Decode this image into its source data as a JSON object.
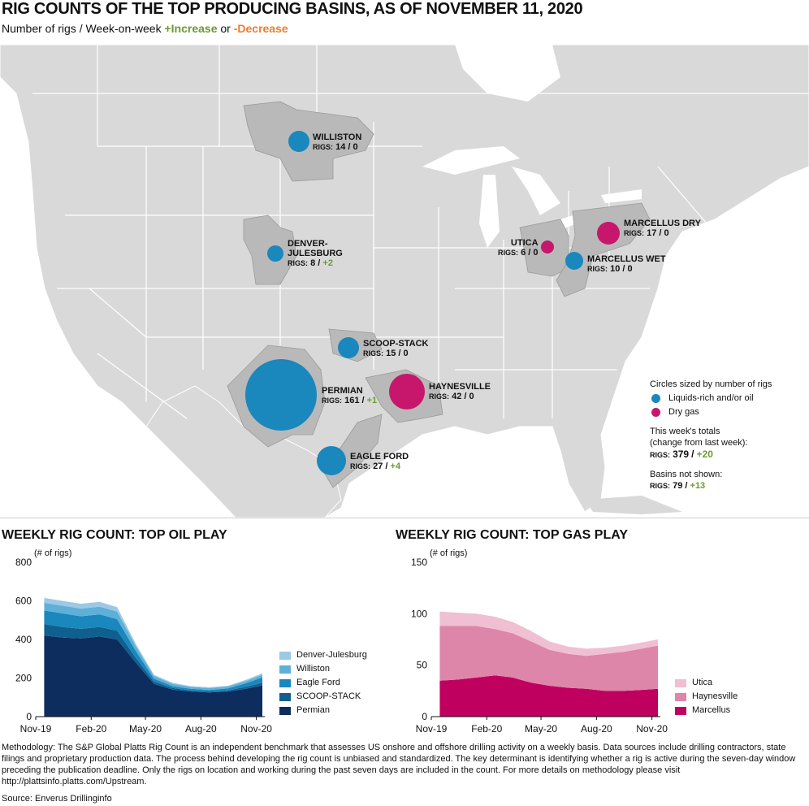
{
  "title": "RIG COUNTS OF THE TOP PRODUCING BASINS, AS OF NOVEMBER 11, 2020",
  "subtitle": {
    "prefix": "Number of rigs / Week-on-week",
    "increase": "+Increase",
    "or": "or",
    "decrease": "-Decrease"
  },
  "colors": {
    "oil": "#1a87bd",
    "gas": "#c6176d",
    "basin_fill": "#b9b9b9",
    "land": "#d9d9d9",
    "increase": "#6a9a2f",
    "decrease": "#f07b2a"
  },
  "basins": [
    {
      "name": "WILLISTON",
      "rigs_label": "RIGS:",
      "rigs": "14",
      "sep": "/",
      "change": "0",
      "type": "oil"
    },
    {
      "name": "DENVER-",
      "name2": "JULESBURG",
      "rigs_label": "RIGS:",
      "rigs": "8",
      "sep": "/",
      "change": "+2",
      "type": "oil"
    },
    {
      "name": "SCOOP-STACK",
      "rigs_label": "RIGS:",
      "rigs": "15",
      "sep": "/",
      "change": "0",
      "type": "oil"
    },
    {
      "name": "PERMIAN",
      "rigs_label": "RIGS:",
      "rigs": "161",
      "sep": "/",
      "change": "+1",
      "type": "oil"
    },
    {
      "name": "HAYNESVILLE",
      "rigs_label": "RIGS:",
      "rigs": "42",
      "sep": "/",
      "change": "0",
      "type": "gas"
    },
    {
      "name": "EAGLE FORD",
      "rigs_label": "RIGS:",
      "rigs": "27",
      "sep": "/",
      "change": "+4",
      "type": "oil"
    },
    {
      "name": "UTICA",
      "rigs_label": "RIGS:",
      "rigs": "6",
      "sep": "/",
      "change": "0",
      "type": "gas"
    },
    {
      "name": "MARCELLUS DRY",
      "rigs_label": "RIGS:",
      "rigs": "17",
      "sep": "/",
      "change": "0",
      "type": "gas"
    },
    {
      "name": "MARCELLUS WET",
      "rigs_label": "RIGS:",
      "rigs": "10",
      "sep": "/",
      "change": "0",
      "type": "oil"
    }
  ],
  "legend": {
    "heading": "Circles sized by number of rigs",
    "oil": "Liquids-rich and/or oil",
    "gas": "Dry gas",
    "totals_heading_1": "This week's totals",
    "totals_heading_2": "(change from last week):",
    "totals_label": "RIGS:",
    "totals_value": "379",
    "totals_sep": "/",
    "totals_change": "+20",
    "not_shown_heading": "Basins not shown:",
    "not_shown_label": "RIGS:",
    "not_shown_value": "79",
    "not_shown_sep": "/",
    "not_shown_change": "+13"
  },
  "chart_data": [
    {
      "type": "area",
      "title": "WEEKLY RIG COUNT: TOP OIL PLAY",
      "ylabel": "(# of rigs)",
      "ylim": [
        0,
        800
      ],
      "yticks": [
        0,
        200,
        400,
        600,
        800
      ],
      "xtick_labels": [
        "Nov-19",
        "Feb-20",
        "May-20",
        "Aug-20",
        "Nov-20"
      ],
      "x": [
        "2019-11-15",
        "2019-12-15",
        "2020-01-15",
        "2020-02-15",
        "2020-03-15",
        "2020-04-15",
        "2020-05-15",
        "2020-06-15",
        "2020-07-15",
        "2020-08-15",
        "2020-09-15",
        "2020-10-15",
        "2020-11-11"
      ],
      "stacked": true,
      "series": [
        {
          "name": "Permian",
          "color": "#0c2d5e",
          "values": [
            420,
            410,
            405,
            415,
            400,
            280,
            170,
            140,
            130,
            125,
            130,
            145,
            161
          ]
        },
        {
          "name": "SCOOP-STACK",
          "color": "#10608f",
          "values": [
            60,
            55,
            50,
            50,
            45,
            25,
            12,
            8,
            6,
            5,
            6,
            10,
            15
          ]
        },
        {
          "name": "Eagle Ford",
          "color": "#1a87bd",
          "values": [
            70,
            70,
            65,
            65,
            60,
            35,
            15,
            10,
            8,
            8,
            10,
            18,
            27
          ]
        },
        {
          "name": "Williston",
          "color": "#5fb0d8",
          "values": [
            40,
            40,
            40,
            40,
            40,
            25,
            15,
            12,
            10,
            10,
            10,
            12,
            14
          ]
        },
        {
          "name": "Denver-Julesburg",
          "color": "#9cc9e6",
          "values": [
            25,
            25,
            25,
            25,
            22,
            12,
            5,
            5,
            4,
            4,
            4,
            6,
            8
          ]
        }
      ]
    },
    {
      "type": "area",
      "title": "WEEKLY RIG COUNT: TOP GAS PLAY",
      "ylabel": "(# of rigs)",
      "ylim": [
        0,
        150
      ],
      "yticks": [
        0,
        50,
        100,
        150
      ],
      "xtick_labels": [
        "Nov-19",
        "Feb-20",
        "May-20",
        "Aug-20",
        "Nov-20"
      ],
      "x": [
        "2019-11-15",
        "2019-12-15",
        "2020-01-15",
        "2020-02-15",
        "2020-03-15",
        "2020-04-15",
        "2020-05-15",
        "2020-06-15",
        "2020-07-15",
        "2020-08-15",
        "2020-09-15",
        "2020-10-15",
        "2020-11-11"
      ],
      "stacked": true,
      "series": [
        {
          "name": "Marcellus",
          "color": "#c0005f",
          "values": [
            35,
            36,
            38,
            40,
            38,
            33,
            30,
            28,
            27,
            25,
            25,
            26,
            27
          ]
        },
        {
          "name": "Haynesville",
          "color": "#de85aa",
          "values": [
            53,
            52,
            50,
            45,
            43,
            40,
            35,
            33,
            32,
            36,
            38,
            40,
            42
          ]
        },
        {
          "name": "Utica",
          "color": "#f0bfd1",
          "values": [
            14,
            13,
            12,
            12,
            11,
            10,
            8,
            7,
            7,
            6,
            6,
            6,
            6
          ]
        }
      ]
    }
  ],
  "methodology": "Methodology: The S&P Global Platts Rig Count is an independent benchmark that assesses US onshore and offshore drilling activity on a weekly basis. Data sources include drilling contractors, state filings and proprietary production data. The process behind developing the rig count is unbiased and standardized. The key determinant is identifying whether a rig is active during the seven-day window preceding the publication deadline. Only the rigs on location and working during the past seven days are included in the count. For more details on methodology please visit http://plattsinfo.platts.com/Upstream.",
  "source": "Source: Enverus Drillinginfo"
}
